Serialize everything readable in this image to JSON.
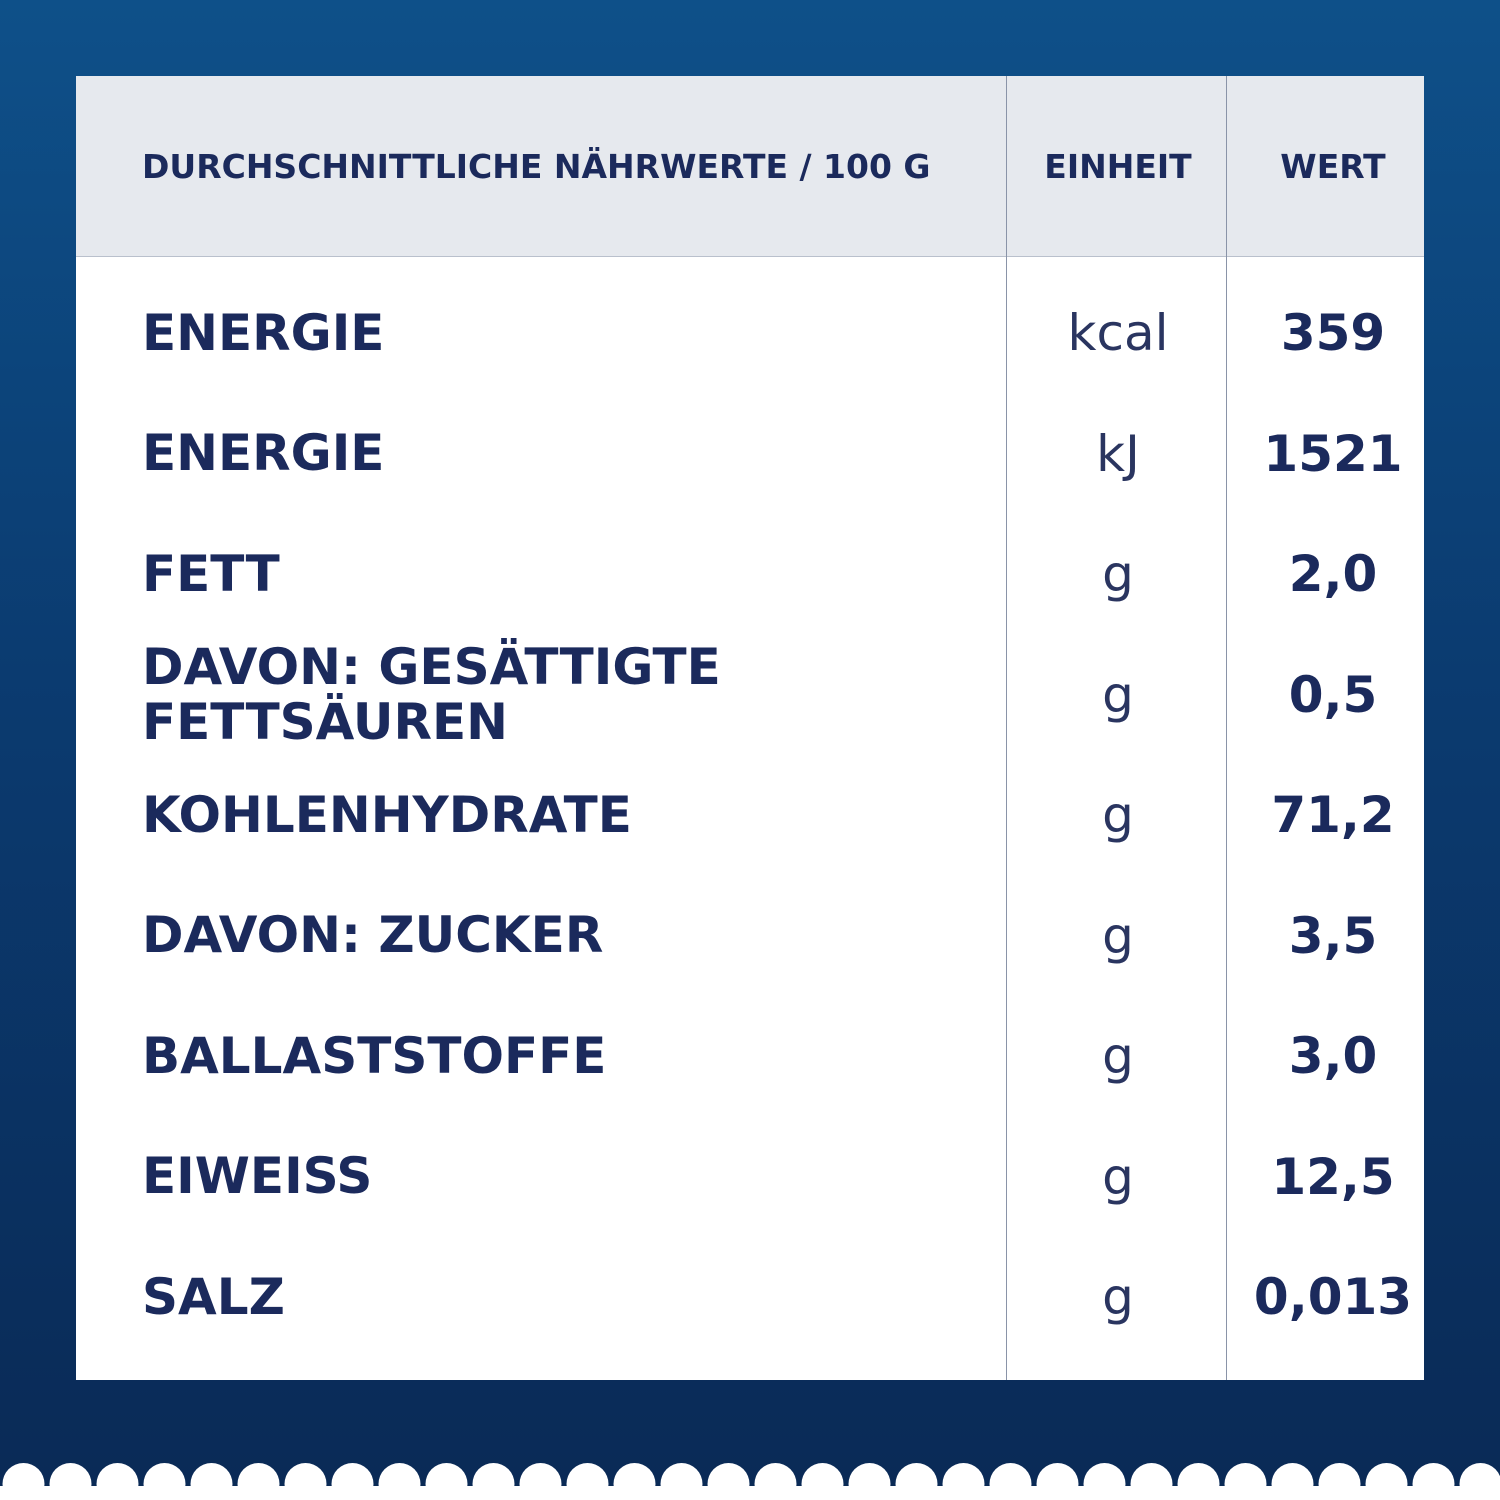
{
  "table": {
    "header": [
      "DURCHSCHNITTLICHE NÄHRWERTE / 100 G",
      "EINHEIT",
      "WERT"
    ],
    "rows": [
      [
        "ENERGIE",
        "kcal",
        "359"
      ],
      [
        "ENERGIE",
        "kJ",
        "1521"
      ],
      [
        "FETT",
        "g",
        "2,0"
      ],
      [
        "DAVON: GESÄTTIGTE FETTSÄUREN",
        "g",
        "0,5"
      ],
      [
        "KOHLENHYDRATE",
        "g",
        "71,2"
      ],
      [
        "DAVON: ZUCKER",
        "g",
        "3,5"
      ],
      [
        "BALLASTSTOFFE",
        "g",
        "3,0"
      ],
      [
        "EIWEISS",
        "g",
        "12,5"
      ],
      [
        "SALZ",
        "g",
        "0,013"
      ]
    ]
  }
}
